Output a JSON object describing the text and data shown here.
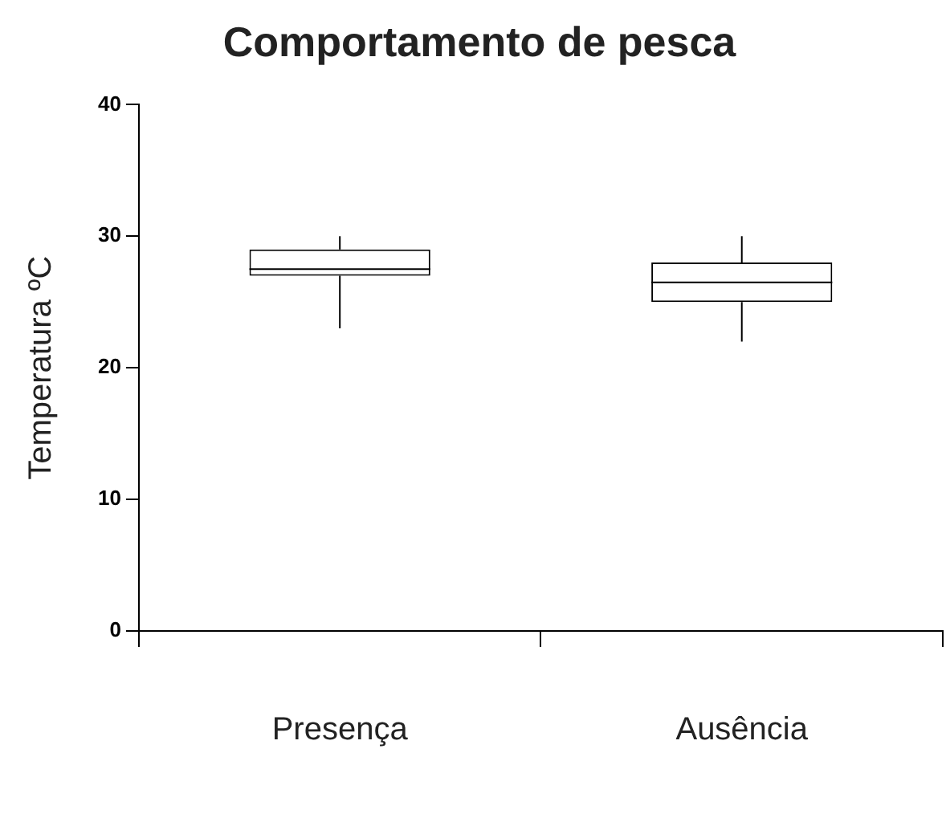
{
  "chart_data": {
    "type": "box",
    "title": "Comportamento de pesca",
    "ylabel": "Temperatura ºC",
    "categories": [
      "Presença",
      "Ausência"
    ],
    "color": "#000000",
    "boxes": [
      {
        "low": 23,
        "q1": 27,
        "median": 27.5,
        "q3": 29,
        "high": 30
      },
      {
        "low": 22,
        "q1": 25,
        "median": 26.5,
        "q3": 28,
        "high": 30
      }
    ],
    "ylim": [
      0,
      40
    ],
    "yticks": [
      0,
      10,
      20,
      30,
      40
    ]
  }
}
